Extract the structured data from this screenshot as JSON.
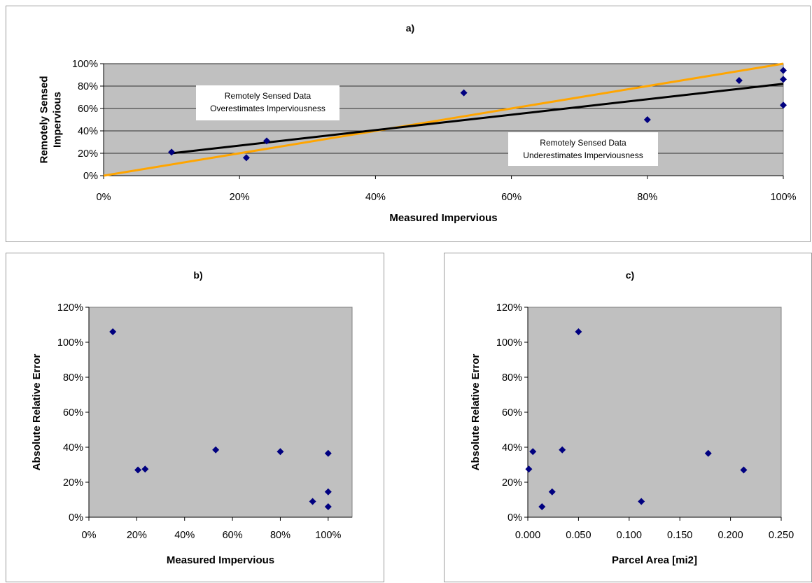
{
  "colors": {
    "plot_bg": "#c0c0c0",
    "gridline": "#000000",
    "marker": "#000080",
    "trendline": "#000000",
    "one_to_one_line": "#ffa500"
  },
  "chart_data": [
    {
      "id": "a",
      "type": "scatter",
      "title": "a)",
      "xlabel": "Measured Impervious",
      "ylabel": [
        "Remotely Sensed",
        "Impervious"
      ],
      "xlim": [
        0,
        1.0
      ],
      "ylim": [
        0,
        1.0
      ],
      "x_ticks": [
        0,
        0.2,
        0.4,
        0.6,
        0.8,
        1.0
      ],
      "x_tick_labels": [
        "0%",
        "20%",
        "40%",
        "60%",
        "80%",
        "100%"
      ],
      "y_ticks": [
        0,
        0.2,
        0.4,
        0.6,
        0.8,
        1.0
      ],
      "y_tick_labels": [
        "0%",
        "20%",
        "40%",
        "60%",
        "80%",
        "100%"
      ],
      "grid": "horizontal",
      "points": [
        {
          "x": 0.1,
          "y": 0.21
        },
        {
          "x": 0.21,
          "y": 0.16
        },
        {
          "x": 0.24,
          "y": 0.31
        },
        {
          "x": 0.53,
          "y": 0.74
        },
        {
          "x": 0.8,
          "y": 0.5
        },
        {
          "x": 0.935,
          "y": 0.85
        },
        {
          "x": 1.0,
          "y": 0.94
        },
        {
          "x": 1.0,
          "y": 0.86
        },
        {
          "x": 1.0,
          "y": 0.63
        }
      ],
      "trendline": [
        {
          "x": 0.1,
          "y": 0.2
        },
        {
          "x": 1.0,
          "y": 0.82
        }
      ],
      "one_to_one_line": [
        {
          "x": 0.0,
          "y": 0.0
        },
        {
          "x": 1.0,
          "y": 1.0
        }
      ],
      "annotations": [
        {
          "lines": [
            "Remotely Sensed Data",
            "Overestimates Imperviousness"
          ]
        },
        {
          "lines": [
            "Remotely Sensed Data",
            "Underestimates Imperviousness"
          ]
        }
      ]
    },
    {
      "id": "b",
      "type": "scatter",
      "title": "b)",
      "xlabel": "Measured Impervious",
      "ylabel": [
        "Absolute Relative Error"
      ],
      "xlim": [
        0,
        1.1
      ],
      "ylim": [
        0,
        1.2
      ],
      "x_ticks": [
        0,
        0.2,
        0.4,
        0.6,
        0.8,
        1.0
      ],
      "x_tick_labels": [
        "0%",
        "20%",
        "40%",
        "60%",
        "80%",
        "100%"
      ],
      "y_ticks": [
        0,
        0.2,
        0.4,
        0.6,
        0.8,
        1.0,
        1.2
      ],
      "y_tick_labels": [
        "0%",
        "20%",
        "40%",
        "60%",
        "80%",
        "100%",
        "120%"
      ],
      "grid": "none",
      "points": [
        {
          "x": 0.1,
          "y": 1.06
        },
        {
          "x": 0.205,
          "y": 0.27
        },
        {
          "x": 0.235,
          "y": 0.275
        },
        {
          "x": 0.53,
          "y": 0.385
        },
        {
          "x": 0.8,
          "y": 0.375
        },
        {
          "x": 0.935,
          "y": 0.09
        },
        {
          "x": 1.0,
          "y": 0.365
        },
        {
          "x": 1.0,
          "y": 0.145
        },
        {
          "x": 1.0,
          "y": 0.06
        }
      ]
    },
    {
      "id": "c",
      "type": "scatter",
      "title": "c)",
      "xlabel": "Parcel Area [mi2]",
      "ylabel": [
        "Absolute Relative Error"
      ],
      "xlim": [
        0,
        0.25
      ],
      "ylim": [
        0,
        1.2
      ],
      "x_ticks": [
        0,
        0.05,
        0.1,
        0.15,
        0.2,
        0.25
      ],
      "x_tick_labels": [
        "0.000",
        "0.050",
        "0.100",
        "0.150",
        "0.200",
        "0.250"
      ],
      "y_ticks": [
        0,
        0.2,
        0.4,
        0.6,
        0.8,
        1.0,
        1.2
      ],
      "y_tick_labels": [
        "0%",
        "20%",
        "40%",
        "60%",
        "80%",
        "100%",
        "120%"
      ],
      "grid": "none",
      "points": [
        {
          "x": 0.001,
          "y": 0.275
        },
        {
          "x": 0.005,
          "y": 0.375
        },
        {
          "x": 0.014,
          "y": 0.06
        },
        {
          "x": 0.024,
          "y": 0.145
        },
        {
          "x": 0.034,
          "y": 0.385
        },
        {
          "x": 0.05,
          "y": 1.06
        },
        {
          "x": 0.112,
          "y": 0.09
        },
        {
          "x": 0.178,
          "y": 0.365
        },
        {
          "x": 0.213,
          "y": 0.27
        }
      ]
    }
  ]
}
